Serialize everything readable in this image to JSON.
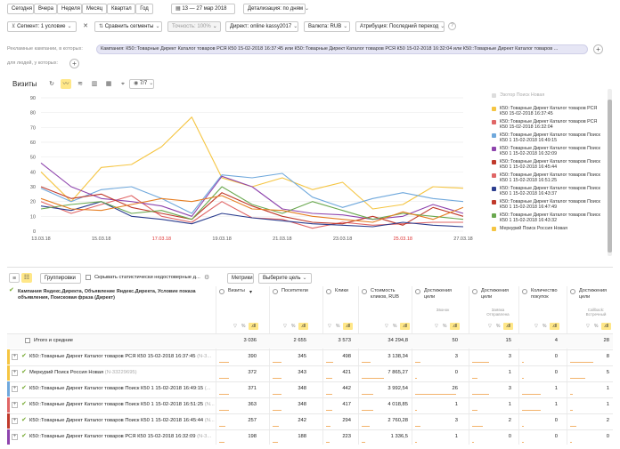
{
  "toolbar": {
    "periods": [
      "Сегодня",
      "Вчера",
      "Неделя",
      "Месяц",
      "Квартал",
      "Год"
    ],
    "date_range": "13 — 27 мар 2018",
    "detail": "Детализация: по дням"
  },
  "filters": {
    "segment": "Сегмент: 1 условие",
    "compare": "Сравнить сегменты",
    "accuracy": "Точность: 100%",
    "direct": "Директ: online kassy2017",
    "currency": "Валюта: RUB",
    "attribution": "Атрибуция: Последний переход"
  },
  "campaigns": {
    "label": "Рекламные кампании, в которых:",
    "pill": "Кампания: К50::Товарные Директ Каталог товаров РСЯ К50 15-02-2018 16:37:45 или К50::Товарные Директ Каталог товаров РСЯ К50 15-02-2018 16:32:04 или К50::Товарные Директ Каталог товаров ...",
    "people_label": "для людей, у которых:"
  },
  "chart_controls": {
    "metric": "Визиты",
    "count": "7/7"
  },
  "colors": {
    "s1": "#f5c542",
    "s2": "#e06666",
    "s3": "#6fa8dc",
    "s4": "#8e44ad",
    "s5": "#c0392b",
    "s6": "#2c3e8f",
    "s7": "#6aa84f",
    "s8": "#e67e22",
    "highlight": "#ffe788"
  },
  "chart_data": {
    "type": "line",
    "x": [
      "13.03.18",
      "14.03.18",
      "15.03.18",
      "16.03.18",
      "17.03.18",
      "18.03.18",
      "19.03.18",
      "20.03.18",
      "21.03.18",
      "22.03.18",
      "23.03.18",
      "24.03.18",
      "25.03.18",
      "26.03.18",
      "27.03.18"
    ],
    "x_ticks": [
      "13.03.18",
      "15.03.18",
      "17.03.18",
      "19.03.18",
      "21.03.18",
      "23.03.18",
      "25.03.18",
      "27.03.18"
    ],
    "weekend_ticks": [
      "17.03.18",
      "25.03.18"
    ],
    "ylim": [
      0,
      90
    ],
    "y_ticks": [
      0,
      10,
      20,
      30,
      40,
      50,
      60,
      70,
      80,
      90
    ],
    "series": [
      {
        "color": "#f5c542",
        "values": [
          40,
          20,
          43,
          45,
          57,
          77,
          36,
          30,
          36,
          28,
          33,
          15,
          18,
          30,
          29
        ]
      },
      {
        "color": "#e06666",
        "values": [
          20,
          12,
          18,
          24,
          10,
          6,
          20,
          9,
          8,
          2,
          6,
          4,
          5,
          6,
          6
        ]
      },
      {
        "color": "#6fa8dc",
        "values": [
          29,
          20,
          28,
          30,
          22,
          12,
          38,
          36,
          39,
          23,
          16,
          22,
          26,
          22,
          20
        ]
      },
      {
        "color": "#8e44ad",
        "values": [
          46,
          30,
          22,
          20,
          17,
          10,
          37,
          30,
          15,
          12,
          11,
          8,
          10,
          18,
          12
        ]
      },
      {
        "color": "#c0392b",
        "values": [
          30,
          22,
          25,
          16,
          12,
          8,
          26,
          17,
          10,
          6,
          5,
          10,
          4,
          16,
          10
        ]
      },
      {
        "color": "#2c3e8f",
        "values": [
          17,
          14,
          20,
          10,
          8,
          5,
          12,
          9,
          7,
          5,
          4,
          3,
          6,
          4,
          3
        ]
      },
      {
        "color": "#6aa84f",
        "values": [
          15,
          18,
          20,
          12,
          14,
          8,
          30,
          18,
          12,
          20,
          14,
          8,
          12,
          10,
          8
        ]
      },
      {
        "color": "#e67e22",
        "values": [
          22,
          15,
          14,
          18,
          22,
          20,
          24,
          15,
          14,
          10,
          8,
          6,
          13,
          8,
          16
        ]
      }
    ]
  },
  "legend": {
    "items": [
      {
        "text": "Эзотор Поиск Новая",
        "color": "#dddddd",
        "checked": false
      },
      {
        "text": "К50::Товарные Директ Каталог товаров РСЯ К50 15-02-2018 16:37:45",
        "color": "#f5c542",
        "checked": true
      },
      {
        "text": "К50::Товарные Директ Каталог товаров РСЯ К50 15-02-2018 16:32:04",
        "color": "#e06666",
        "checked": true
      },
      {
        "text": "К50::Товарные Директ Каталог товаров Поиск К50 1 15-02-2018 16:49:15",
        "color": "#6fa8dc",
        "checked": true
      },
      {
        "text": "К50::Товарные Директ Каталог товаров Поиск К50 1 15-02-2018 16:32:09",
        "color": "#8e44ad",
        "checked": true
      },
      {
        "text": "К50::Товарные Директ Каталог товаров Поиск К50 1 15-02-2018 16:45:44",
        "color": "#c0392b",
        "checked": true
      },
      {
        "text": "К50::Товарные Директ Каталог товаров Поиск К50 1 15-02-2018 16:51:25",
        "color": "#e06666",
        "checked": true
      },
      {
        "text": "К50::Товарные Директ Каталог товаров Поиск К50 1 15-02-2018 16:43:37",
        "color": "#2c3e8f",
        "checked": true
      },
      {
        "text": "К50::Товарные Директ Каталог товаров Поиск К50 1 15-02-2018 16:47:49",
        "color": "#c0392b",
        "checked": true
      },
      {
        "text": "К50::Товарные Директ Каталог товаров Поиск К50 1 15-02-2018 16:43:32",
        "color": "#6aa84f",
        "checked": true
      },
      {
        "text": "Меркурий Поиск Россия Новая",
        "color": "#f5c542",
        "checked": true
      }
    ]
  },
  "table_controls": {
    "group": "Группировки",
    "hide": "Скрывать статистически недостоверные д...",
    "metrics": "Метрики",
    "goal": "Выберите цель"
  },
  "table": {
    "dimension_header": "Кампания Яндекс.Директа, Объявление Яндекс.Директа, Условие показа объявления, Поисковая фраза (Директ)",
    "columns": [
      {
        "title": "Визиты",
        "sub": "",
        "sort": "▾"
      },
      {
        "title": "Посетители",
        "sub": "",
        "sort": ""
      },
      {
        "title": "Клики",
        "sub": "",
        "sort": ""
      },
      {
        "title": "Стоимость кликов, RUB",
        "sub": "",
        "sort": ""
      },
      {
        "title": "Достижения цели",
        "sub": "Звонок",
        "sort": ""
      },
      {
        "title": "Достижения цели",
        "sub": "Заявка Отправлена",
        "sort": ""
      },
      {
        "title": "Количество покупок",
        "sub": "",
        "sort": ""
      },
      {
        "title": "Достижения цели",
        "sub": "Callback: Встречный",
        "sort": ""
      }
    ],
    "filter_icons": [
      "▽",
      "%",
      ".dl"
    ],
    "totals": {
      "label": "Итого и средние",
      "values": [
        "3 036",
        "2 655",
        "3 573",
        "34 294,8",
        "50",
        "15",
        "4",
        "28"
      ]
    },
    "rows": [
      {
        "name": "К50::Товарные Директ Каталог товаров РСЯ К50 15-02-2018 16:37:45",
        "id": "(N-3...",
        "stripe": "#f5c542",
        "values": [
          "390",
          "345",
          "498",
          "3 138,34",
          "3",
          "3",
          "0",
          "8"
        ]
      },
      {
        "name": "Меркурий Поиск Россия Новая",
        "id": "(N-33229695)",
        "stripe": "#f5c542",
        "values": [
          "372",
          "343",
          "421",
          "7 865,27",
          "0",
          "1",
          "0",
          "5"
        ]
      },
      {
        "name": "К50::Товарные Директ Каталог товаров Поиск К50 1 15-02-2018 16:49:15",
        "id": "(...",
        "stripe": "#6fa8dc",
        "values": [
          "371",
          "348",
          "442",
          "3 992,54",
          "26",
          "3",
          "1",
          "1"
        ]
      },
      {
        "name": "К50::Товарные Директ Каталог товаров Поиск К50 1 15-02-2018 16:51:25",
        "id": "(N...",
        "stripe": "#e06666",
        "values": [
          "363",
          "348",
          "417",
          "4 018,85",
          "1",
          "1",
          "1",
          "1"
        ]
      },
      {
        "name": "К50::Товарные Директ Каталог товаров Поиск К50 1 15-02-2018 16:45:44",
        "id": "(N...",
        "stripe": "#c0392b",
        "values": [
          "257",
          "242",
          "294",
          "2 760,28",
          "3",
          "2",
          "0",
          "2"
        ]
      },
      {
        "name": "К50::Товарные Директ Каталог товаров РСЯ К50 15-02-2018 16:32:09",
        "id": "(N-3...",
        "stripe": "#8e44ad",
        "values": [
          "198",
          "188",
          "223",
          "1 336,5",
          "1",
          "0",
          "0",
          "0"
        ]
      }
    ]
  }
}
